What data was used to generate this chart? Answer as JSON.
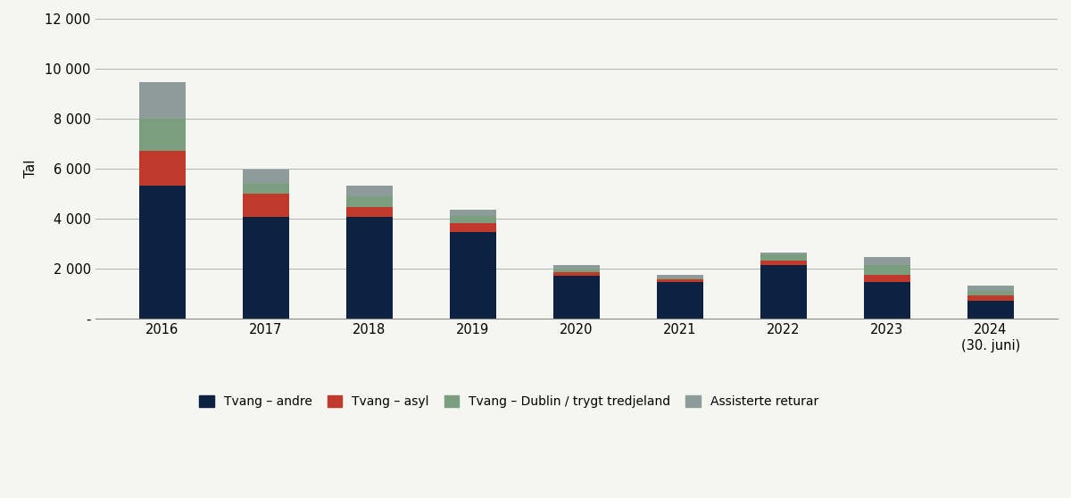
{
  "categories": [
    "2016",
    "2017",
    "2018",
    "2019",
    "2020",
    "2021",
    "2022",
    "2023",
    "2024\n(30. juni)"
  ],
  "tvang_andre": [
    5300,
    4050,
    4050,
    3450,
    1700,
    1450,
    2150,
    1450,
    700
  ],
  "tvang_asyl": [
    1400,
    950,
    400,
    350,
    150,
    100,
    150,
    300,
    220
  ],
  "tvang_dublin": [
    1300,
    400,
    450,
    300,
    100,
    50,
    250,
    400,
    180
  ],
  "assisterte": [
    1450,
    550,
    400,
    250,
    200,
    150,
    100,
    300,
    200
  ],
  "color_andre": "#0d2240",
  "color_asyl": "#c0392b",
  "color_dublin": "#7a9e7e",
  "color_assisterte": "#8d9b9b",
  "ylabel": "Tal",
  "ylim": [
    0,
    12000
  ],
  "yticks": [
    0,
    2000,
    4000,
    6000,
    8000,
    10000,
    12000
  ],
  "ytick_labels": [
    "-",
    "2 000",
    "4 000",
    "6 000",
    "8 000",
    "10 000",
    "12 000"
  ],
  "legend_labels": [
    "Tvang – andre",
    "Tvang – asyl",
    "Tvang – Dublin / trygt tredjeland",
    "Assisterte returar"
  ],
  "background_color": "#f5f5f2",
  "bar_width": 0.45
}
